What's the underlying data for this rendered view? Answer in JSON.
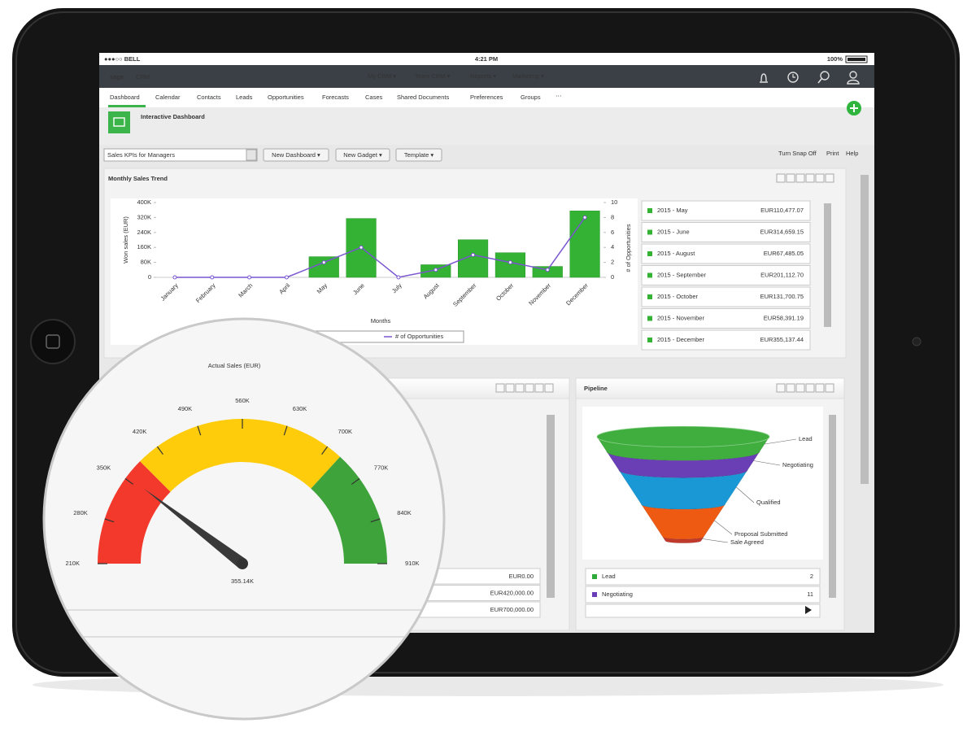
{
  "status_bar": {
    "carrier": "●●●○○ BELL",
    "time": "4:21 PM",
    "battery": "100%"
  },
  "nav": {
    "logo_brand": "sage",
    "logo_product": "CRM",
    "menus": [
      "My CRM ▾",
      "Team CRM ▾",
      "Reports ▾",
      "Marketing ▾"
    ]
  },
  "tabs": [
    "Dashboard",
    "Calendar",
    "Contacts",
    "Leads",
    "Opportunities",
    "Forecasts",
    "Cases",
    "Shared Documents",
    "Preferences",
    "Groups"
  ],
  "dashboard": {
    "title": "Interactive Dashboard"
  },
  "toolbar": {
    "select": "Sales KPIs for Managers",
    "buttons": [
      "New Dashboard ▾",
      "New Gadget ▾",
      "Template ▾"
    ],
    "links": [
      "Turn Snap Off",
      "Print",
      "Help"
    ]
  },
  "sales_trend_table": [
    {
      "label": "2015 - May",
      "value": "EUR110,477.07"
    },
    {
      "label": "2015 - June",
      "value": "EUR314,659.15"
    },
    {
      "label": "2015 - August",
      "value": "EUR67,485.05"
    },
    {
      "label": "2015 - September",
      "value": "EUR201,112.70"
    },
    {
      "label": "2015 - October",
      "value": "EUR131,700.75"
    },
    {
      "label": "2015 - November",
      "value": "EUR58,391.19"
    },
    {
      "label": "2015 - December",
      "value": "EUR355,137.44"
    }
  ],
  "left_panel_table": [
    "EUR0.00",
    "EUR420,000.00",
    "EUR700,000.00"
  ],
  "pipeline_table": [
    {
      "label": "Lead",
      "count": 2,
      "color": "#2eaa3a"
    },
    {
      "label": "Negotiating",
      "count": 11,
      "color": "#6a3db8"
    }
  ],
  "chart_data": [
    {
      "type": "bar",
      "title": "Monthly Sales Trend",
      "categories": [
        "January",
        "February",
        "March",
        "April",
        "May",
        "June",
        "July",
        "August",
        "September",
        "October",
        "November",
        "December"
      ],
      "series": [
        {
          "color": "#33b233",
          "values": [
            0,
            0,
            0,
            0,
            110477.07,
            314659.15,
            0,
            67485.05,
            201112.7,
            131700.75,
            58391.19,
            355137.44
          ]
        },
        {
          "name": "# of Opportunities",
          "type": "line",
          "axis": "y2",
          "color": "#7a55d0",
          "values": [
            0,
            0,
            0,
            0,
            2,
            4,
            0,
            1,
            3,
            2,
            1,
            8
          ]
        }
      ],
      "ylim": [
        0,
        400000
      ],
      "yticks": [
        0,
        {
          "value": 80000,
          "label": "80K"
        },
        {
          "value": 160000,
          "label": "160K"
        },
        {
          "value": 240000,
          "label": "240K"
        },
        {
          "value": 320000,
          "label": "320K"
        },
        {
          "value": 400000,
          "label": "400K"
        }
      ],
      "y2lim": [
        0,
        10
      ],
      "y2ticks": [
        0,
        2,
        4,
        6,
        8,
        10
      ],
      "y_label": "Won sales (EUR)",
      "y2_label": "# of Opportunities",
      "x_label": "Months",
      "grid": false
    },
    {
      "type": "gauge",
      "title": "Actual Sales (EUR)",
      "range": [
        210000,
        910000
      ],
      "ticks": [
        {
          "value": 210000,
          "label": "210K"
        },
        {
          "value": 280000,
          "label": "280K"
        },
        {
          "value": 350000,
          "label": "350K"
        },
        {
          "value": 420000,
          "label": "420K"
        },
        {
          "value": 490000,
          "label": "490K"
        },
        {
          "value": 560000,
          "label": "560K"
        },
        {
          "value": 630000,
          "label": "630K"
        },
        {
          "value": 700000,
          "label": "700K"
        },
        {
          "value": 770000,
          "label": "770K"
        },
        {
          "value": 840000,
          "label": "840K"
        },
        {
          "value": 910000,
          "label": "910K"
        }
      ],
      "bands": [
        {
          "from": 210000,
          "to": 385000,
          "color": "#f2392c"
        },
        {
          "from": 385000,
          "to": 725000,
          "color": "#fecc0a"
        },
        {
          "from": 725000,
          "to": 910000,
          "color": "#3fa33c"
        }
      ],
      "value": 355140,
      "value_label": "355.14K"
    },
    {
      "type": "funnel",
      "title": "Pipeline",
      "categories": [
        "Lead",
        "Negotiating",
        "Qualified",
        "Proposal Submitted",
        "Sale Agreed"
      ],
      "colors": [
        "#3fae3f",
        "#6a3fb5",
        "#1a98d5",
        "#ee5a12",
        "#c0392b"
      ]
    }
  ]
}
